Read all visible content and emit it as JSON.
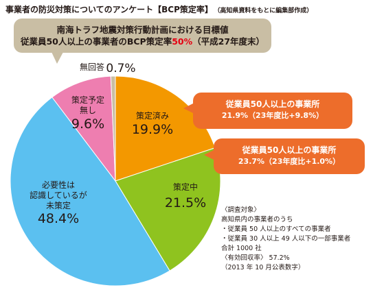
{
  "header": {
    "title": "事業者の防災対策についてのアンケート【BCP策定率】",
    "source": "（高知県資料をもとに編集部作成）"
  },
  "callout_top": {
    "line1": "南海トラフ地震対策行動計画における目標値",
    "line2_before": "従業員50人以上の事業者のBCP策定率",
    "line2_highlight": "50%",
    "line2_after": "（平成27年度末）"
  },
  "callout_completed": {
    "line1": "従業員50人以上の事業所",
    "line2": "21.9%（23年度比+9.8%）"
  },
  "callout_in_progress": {
    "line1": "従業員50人以上の事業所",
    "line2": "23.7%（23年度比+1.0%）"
  },
  "chart_data": {
    "type": "pie",
    "slices": [
      {
        "label": "策定済み",
        "label_lines": [
          "策定済み"
        ],
        "value": 19.9,
        "value_label": "19.9%",
        "color": "#f39800"
      },
      {
        "label": "策定中",
        "label_lines": [
          "策定中"
        ],
        "value": 21.5,
        "value_label": "21.5%",
        "color": "#8fc31f"
      },
      {
        "label": "必要性は認識しているが未策定",
        "label_lines": [
          "必要性は",
          "認識しているが",
          "未策定"
        ],
        "value": 48.4,
        "value_label": "48.4%",
        "color": "#5bc0f0"
      },
      {
        "label": "策定予定無し",
        "label_lines": [
          "策定予定",
          "無し"
        ],
        "value": 9.6,
        "value_label": "9.6%",
        "color": "#ee7eb0"
      },
      {
        "label": "無回答",
        "label_lines": [
          "無回答"
        ],
        "value": 0.7,
        "value_label": "0.7%",
        "color": "#c9bea4"
      }
    ],
    "start": "12 o'clock",
    "direction": "clockwise"
  },
  "notes": [
    "〈調査対象〉",
    "高知県内の事業者のうち",
    "・従業員 50 人以上のすべての事業者",
    "・従業員 30 人以上 49 人以下の一部事業者",
    "合計 1000 社",
    "〈有効回収率〉 57.2%",
    "（2013 年 10 月公表数字）"
  ]
}
